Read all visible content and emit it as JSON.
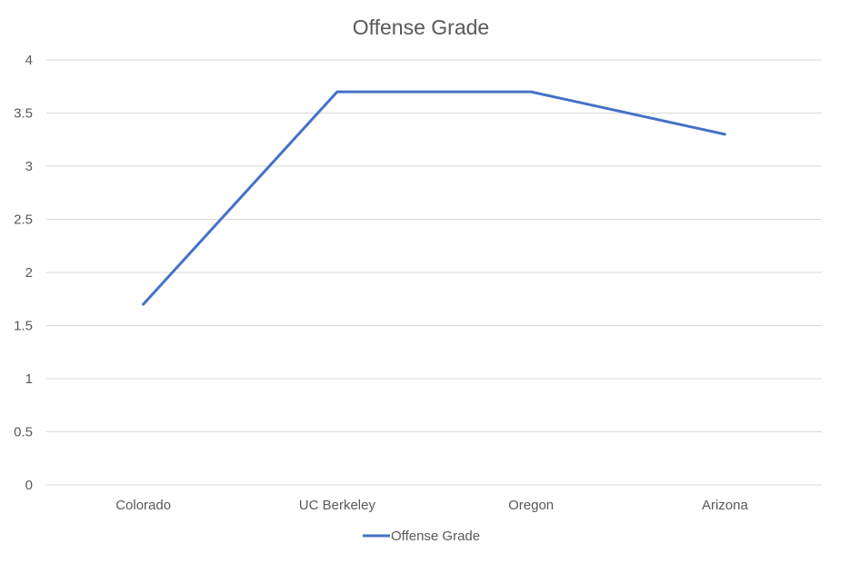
{
  "chart_data": {
    "type": "line",
    "title": "Offense Grade",
    "xlabel": "",
    "ylabel": "",
    "categories": [
      "Colorado",
      "UC Berkeley",
      "Oregon",
      "Arizona"
    ],
    "series": [
      {
        "name": "Offense Grade",
        "values": [
          1.7,
          3.7,
          3.7,
          3.3
        ],
        "color": "#4472C4"
      }
    ],
    "ylim": [
      0,
      4
    ],
    "yticks": [
      "0",
      "0.5",
      "1",
      "1.5",
      "2",
      "2.5",
      "3",
      "3.5",
      "4"
    ],
    "grid": true,
    "legend": "bottom"
  }
}
